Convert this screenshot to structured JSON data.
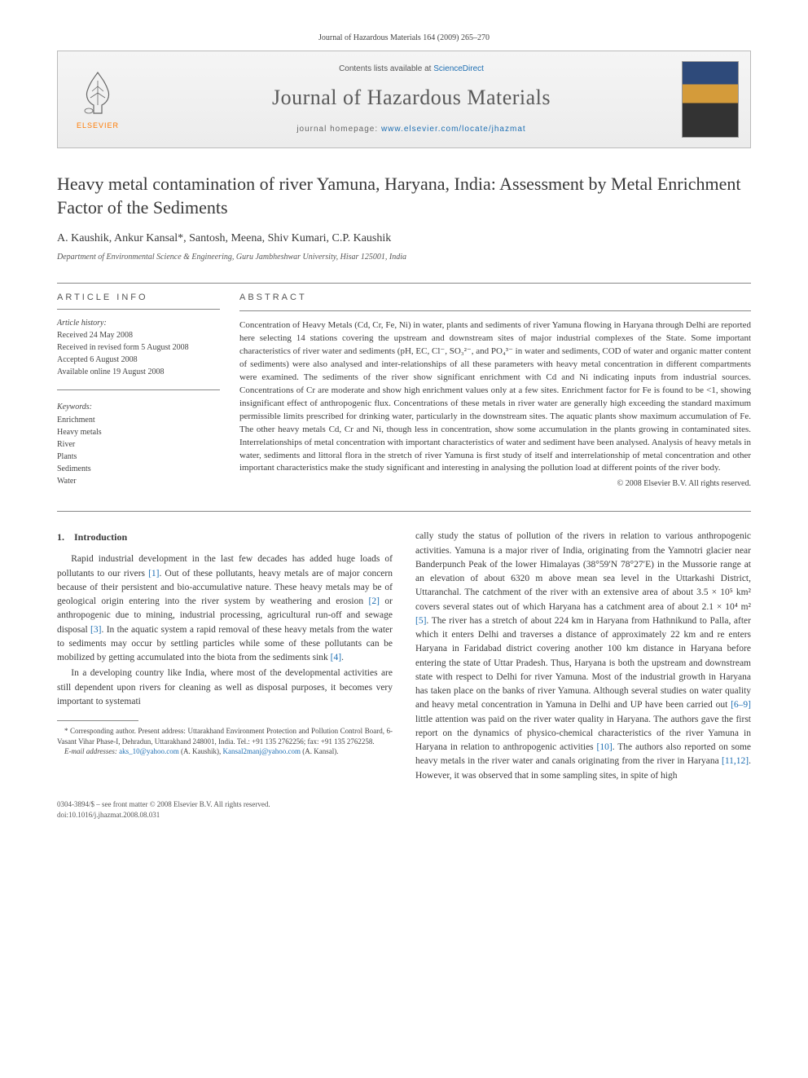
{
  "header": {
    "citation": "Journal of Hazardous Materials 164 (2009) 265–270",
    "contents_label": "Contents lists available at ",
    "sciencedirect": "ScienceDirect",
    "journal_name": "Journal of Hazardous Materials",
    "homepage_label": "journal homepage: ",
    "homepage_url": "www.elsevier.com/locate/jhazmat",
    "publisher": "ELSEVIER",
    "colors": {
      "publisher_orange": "#ff7a00",
      "link_blue": "#1e6fb3",
      "banner_bg_top": "#f5f5f5",
      "banner_bg_bottom": "#ececec",
      "border_gray": "#bbbbbb"
    }
  },
  "article": {
    "title": "Heavy metal contamination of river Yamuna, Haryana, India: Assessment by Metal Enrichment Factor of the Sediments",
    "authors": "A. Kaushik, Ankur Kansal*, Santosh, Meena, Shiv Kumari, C.P. Kaushik",
    "affiliation": "Department of Environmental Science & Engineering, Guru Jambheshwar University, Hisar 125001, India"
  },
  "info": {
    "head": "article info",
    "history_label": "Article history:",
    "history": [
      "Received 24 May 2008",
      "Received in revised form 5 August 2008",
      "Accepted 6 August 2008",
      "Available online 19 August 2008"
    ],
    "keywords_label": "Keywords:",
    "keywords": [
      "Enrichment",
      "Heavy metals",
      "River",
      "Plants",
      "Sediments",
      "Water"
    ]
  },
  "abstract": {
    "head": "abstract",
    "text": "Concentration of Heavy Metals (Cd, Cr, Fe, Ni) in water, plants and sediments of river Yamuna flowing in Haryana through Delhi are reported here selecting 14 stations covering the upstream and downstream sites of major industrial complexes of the State. Some important characteristics of river water and sediments (pH, EC, Cl⁻, SO₃²⁻, and PO₄³⁻ in water and sediments, COD of water and organic matter content of sediments) were also analysed and inter-relationships of all these parameters with heavy metal concentration in different compartments were examined. The sediments of the river show significant enrichment with Cd and Ni indicating inputs from industrial sources. Concentrations of Cr are moderate and show high enrichment values only at a few sites. Enrichment factor for Fe is found to be <1, showing insignificant effect of anthropogenic flux. Concentrations of these metals in river water are generally high exceeding the standard maximum permissible limits prescribed for drinking water, particularly in the downstream sites. The aquatic plants show maximum accumulation of Fe. The other heavy metals Cd, Cr and Ni, though less in concentration, show some accumulation in the plants growing in contaminated sites. Interrelationships of metal concentration with important characteristics of water and sediment have been analysed. Analysis of heavy metals in water, sediments and littoral flora in the stretch of river Yamuna is first study of itself and interrelationship of metal concentration and other important characteristics make the study significant and interesting in analysing the pollution load at different points of the river body.",
    "copyright": "© 2008 Elsevier B.V. All rights reserved."
  },
  "body": {
    "section_number": "1.",
    "section_title": "Introduction",
    "para1": "Rapid industrial development in the last few decades has added huge loads of pollutants to our rivers [1]. Out of these pollutants, heavy metals are of major concern because of their persistent and bio-accumulative nature. These heavy metals may be of geological origin entering into the river system by weathering and erosion [2] or anthropogenic due to mining, industrial processing, agricultural run-off and sewage disposal [3]. In the aquatic system a rapid removal of these heavy metals from the water to sediments may occur by settling particles while some of these pollutants can be mobilized by getting accumulated into the biota from the sediments sink [4].",
    "para2": "In a developing country like India, where most of the developmental activities are still dependent upon rivers for cleaning as well as disposal purposes, it becomes very important to systemati",
    "para3": "cally study the status of pollution of the rivers in relation to various anthropogenic activities. Yamuna is a major river of India, originating from the Yamnotri glacier near Banderpunch Peak of the lower Himalayas (38°59′N 78°27′E) in the Mussorie range at an elevation of about 6320 m above mean sea level in the Uttarkashi District, Uttaranchal. The catchment of the river with an extensive area of about 3.5 × 10⁵ km² covers several states out of which Haryana has a catchment area of about 2.1 × 10⁴ m² [5]. The river has a stretch of about 224 km in Haryana from Hathnikund to Palla, after which it enters Delhi and traverses a distance of approximately 22 km and re enters Haryana in Faridabad district covering another 100 km distance in Haryana before entering the state of Uttar Pradesh. Thus, Haryana is both the upstream and downstream state with respect to Delhi for river Yamuna. Most of the industrial growth in Haryana has taken place on the banks of river Yamuna. Although several studies on water quality and heavy metal concentration in Yamuna in Delhi and UP have been carried out [6–9] little attention was paid on the river water quality in Haryana. The authors gave the first report on the dynamics of physico-chemical characteristics of the river Yamuna in Haryana in relation to anthropogenic activities [10]. The authors also reported on some heavy metals in the river water and canals originating from the river in Haryana [11,12]. However, it was observed that in some sampling sites, in spite of high"
  },
  "footnote": {
    "corr": "* Corresponding author. Present address: Uttarakhand Environment Protection and Pollution Control Board, 6-Vasant Vihar Phase-I, Dehradun, Uttarakhand 248001, India. Tel.: +91 135 2762256; fax: +91 135 2762258.",
    "email_label": "E-mail addresses: ",
    "email1": "aks_10@yahoo.com",
    "email1_name": " (A. Kaushik), ",
    "email2": "Kansal2manj@yahoo.com",
    "email2_name": " (A. Kansal)."
  },
  "footer": {
    "issn": "0304-3894/$ – see front matter © 2008 Elsevier B.V. All rights reserved.",
    "doi": "doi:10.1016/j.jhazmat.2008.08.031"
  }
}
